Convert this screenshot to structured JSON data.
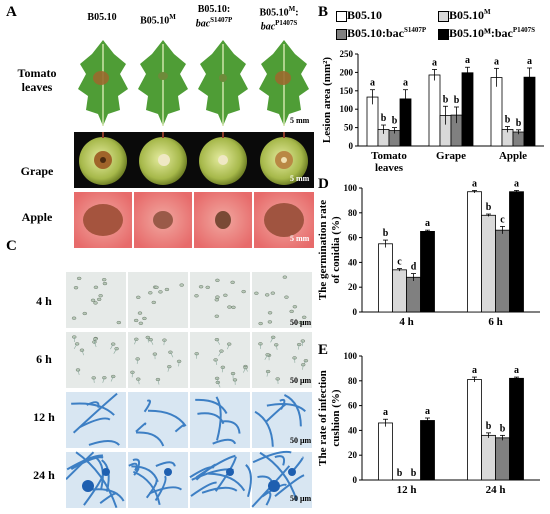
{
  "panels": {
    "A": "A",
    "B": "B",
    "C": "C",
    "D": "D",
    "E": "E"
  },
  "strains": [
    {
      "main": "B05.10",
      "sup": "",
      "sub": ""
    },
    {
      "main": "B05.10",
      "sup": "M",
      "sub": ""
    },
    {
      "main": "B05.10:",
      "sup": "",
      "sub": "bac",
      "subsup": "S1407P"
    },
    {
      "main": "B05.10",
      "sup": "M",
      "tail": ":",
      "sub": "bac",
      "subsup": "P1407S"
    }
  ],
  "panelA": {
    "rows": [
      {
        "label": "Tomato\nleaves",
        "scale": "5 mm"
      },
      {
        "label": "Grape",
        "scale": "5 mm"
      },
      {
        "label": "Apple",
        "scale": "5 mm"
      }
    ]
  },
  "panelC": {
    "rows": [
      {
        "label": "4 h",
        "scale": "50 μm"
      },
      {
        "label": "6 h",
        "scale": "50 μm"
      },
      {
        "label": "12 h",
        "scale": "50 μm"
      },
      {
        "label": "24 h",
        "scale": "50 μm"
      }
    ]
  },
  "legend": [
    {
      "text": "B05.10",
      "sup": "",
      "color": "#ffffff"
    },
    {
      "text": "B05.10",
      "sup": "M",
      "color": "#d9d9d9"
    },
    {
      "text": "B05.10:bac",
      "sup": "S1407P",
      "color": "#808080"
    },
    {
      "text": "B05.10ᴹ:bac",
      "sup": "P1407S",
      "color": "#000000"
    }
  ],
  "colors": [
    "#ffffff",
    "#d9d9d9",
    "#808080",
    "#000000"
  ],
  "chart_data": [
    {
      "panel": "B",
      "type": "bar",
      "ylabel": "Lesion area (mm²)",
      "ylim": [
        0,
        250
      ],
      "yticks": [
        0,
        50,
        100,
        150,
        200,
        250
      ],
      "categories": [
        "Tomato\nleaves",
        "Grape",
        "Apple"
      ],
      "series": [
        {
          "name": "B05.10",
          "values": [
            133,
            193,
            186
          ],
          "err": [
            20,
            15,
            25
          ],
          "letters": [
            "a",
            "a",
            "a"
          ]
        },
        {
          "name": "B05.10M",
          "values": [
            45,
            83,
            45
          ],
          "err": [
            12,
            25,
            8
          ],
          "letters": [
            "b",
            "b",
            "b"
          ]
        },
        {
          "name": "B05.10:bacS1407P",
          "values": [
            42,
            84,
            38
          ],
          "err": [
            8,
            22,
            6
          ],
          "letters": [
            "b",
            "b",
            "b"
          ]
        },
        {
          "name": "B05.10M:bacP1407S",
          "values": [
            128,
            199,
            187
          ],
          "err": [
            25,
            15,
            25
          ],
          "letters": [
            "a",
            "a",
            "a"
          ]
        }
      ]
    },
    {
      "panel": "D",
      "type": "bar",
      "ylabel": "The germination rate\nof conidia (%)",
      "ylim": [
        0,
        100
      ],
      "yticks": [
        0,
        20,
        40,
        60,
        80,
        100
      ],
      "categories": [
        "4 h",
        "6 h"
      ],
      "series": [
        {
          "name": "B05.10",
          "values": [
            55,
            97
          ],
          "err": [
            3,
            1
          ],
          "letters": [
            "b",
            "a"
          ]
        },
        {
          "name": "B05.10M",
          "values": [
            34,
            78
          ],
          "err": [
            1,
            1
          ],
          "letters": [
            "c",
            "b"
          ]
        },
        {
          "name": "B05.10:bacS1407P",
          "values": [
            28,
            66
          ],
          "err": [
            3,
            3
          ],
          "letters": [
            "d",
            "c"
          ]
        },
        {
          "name": "B05.10M:bacP1407S",
          "values": [
            65,
            97
          ],
          "err": [
            1,
            1
          ],
          "letters": [
            "a",
            "a"
          ]
        }
      ]
    },
    {
      "panel": "E",
      "type": "bar",
      "ylabel": "The rate of infection\ncushion (%)",
      "ylim": [
        0,
        100
      ],
      "yticks": [
        0,
        20,
        40,
        60,
        80,
        100
      ],
      "categories": [
        "12 h",
        "24 h"
      ],
      "series": [
        {
          "name": "B05.10",
          "values": [
            46,
            81
          ],
          "err": [
            3,
            2
          ],
          "letters": [
            "a",
            "a"
          ]
        },
        {
          "name": "B05.10M",
          "values": [
            0,
            36
          ],
          "err": [
            0,
            2
          ],
          "letters": [
            "b",
            "b"
          ]
        },
        {
          "name": "B05.10:bacS1407P",
          "values": [
            0,
            34
          ],
          "err": [
            0,
            2
          ],
          "letters": [
            "b",
            "b"
          ]
        },
        {
          "name": "B05.10M:bacP1407S",
          "values": [
            48,
            82
          ],
          "err": [
            2,
            1
          ],
          "letters": [
            "a",
            "a"
          ]
        }
      ]
    }
  ]
}
